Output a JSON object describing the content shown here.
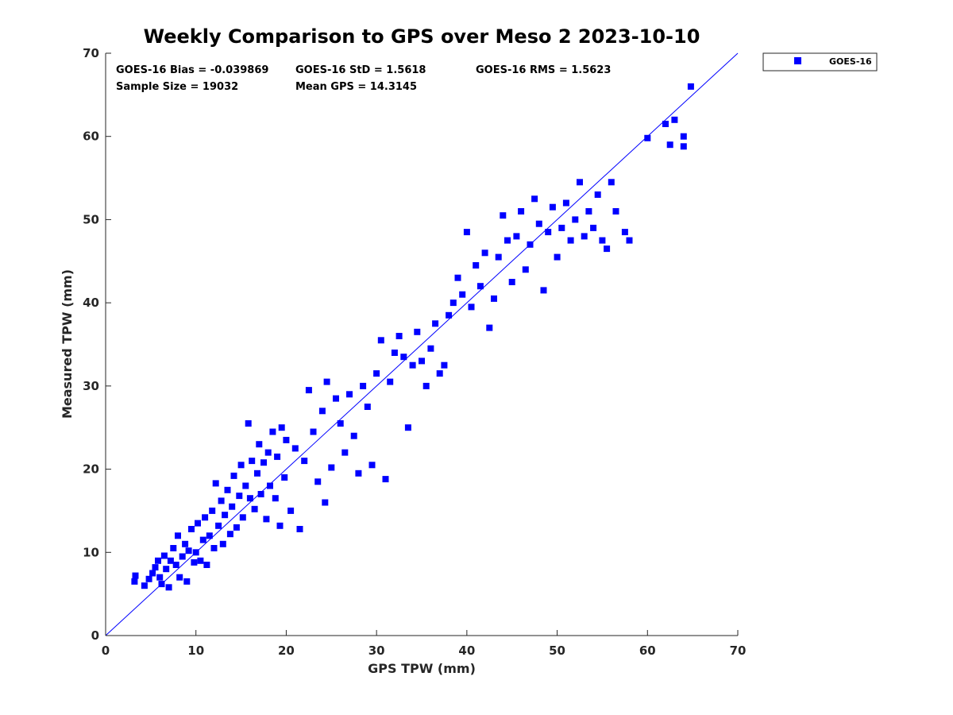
{
  "chart_data": {
    "type": "scatter",
    "title": "Weekly Comparison to GPS over Meso 2 2023-10-10",
    "xlabel": "GPS TPW (mm)",
    "ylabel": "Measured TPW (mm)",
    "xlim": [
      0,
      70
    ],
    "ylim": [
      0,
      70
    ],
    "xticks": [
      "0",
      "10",
      "20",
      "30",
      "40",
      "50",
      "60",
      "70"
    ],
    "yticks": [
      "0",
      "10",
      "20",
      "30",
      "40",
      "50",
      "60",
      "70"
    ],
    "grid": false,
    "legend": {
      "position": "top-right, outside",
      "entries": [
        "GOES-16"
      ]
    },
    "series_color": "#0000ff",
    "reference_line": {
      "type": "one-to-one",
      "from": [
        0,
        0
      ],
      "to": [
        70,
        70
      ],
      "color": "#0000ff"
    },
    "stats": {
      "bias": "GOES-16 Bias = -0.039869",
      "std": "GOES-16 StD = 1.5618",
      "rms": "GOES-16 RMS = 1.5623",
      "sample_size": "Sample Size = 19032",
      "mean_gps": "Mean GPS = 14.3145"
    },
    "series": [
      {
        "name": "GOES-16",
        "note": "representative subset of the 19032 plotted points (estimated from the figure)",
        "points": [
          [
            3.2,
            6.5
          ],
          [
            3.3,
            7.2
          ],
          [
            4.3,
            6.0
          ],
          [
            4.8,
            6.8
          ],
          [
            5.2,
            7.5
          ],
          [
            5.5,
            8.2
          ],
          [
            5.8,
            9.0
          ],
          [
            6.0,
            7.0
          ],
          [
            6.2,
            6.2
          ],
          [
            6.5,
            9.6
          ],
          [
            6.7,
            8.0
          ],
          [
            7.0,
            5.8
          ],
          [
            7.2,
            9.0
          ],
          [
            7.5,
            10.5
          ],
          [
            7.8,
            8.5
          ],
          [
            8.0,
            12.0
          ],
          [
            8.2,
            7.0
          ],
          [
            8.5,
            9.5
          ],
          [
            8.8,
            11.0
          ],
          [
            9.0,
            6.5
          ],
          [
            9.2,
            10.2
          ],
          [
            9.5,
            12.8
          ],
          [
            9.8,
            8.8
          ],
          [
            10.0,
            10.0
          ],
          [
            10.2,
            13.5
          ],
          [
            10.5,
            9.0
          ],
          [
            10.8,
            11.5
          ],
          [
            11.0,
            14.2
          ],
          [
            11.2,
            8.5
          ],
          [
            11.5,
            12.0
          ],
          [
            11.8,
            15.0
          ],
          [
            12.0,
            10.5
          ],
          [
            12.2,
            18.3
          ],
          [
            12.5,
            13.2
          ],
          [
            12.8,
            16.2
          ],
          [
            13.0,
            11.0
          ],
          [
            13.2,
            14.5
          ],
          [
            13.5,
            17.5
          ],
          [
            13.8,
            12.2
          ],
          [
            14.0,
            15.5
          ],
          [
            14.2,
            19.2
          ],
          [
            14.5,
            13.0
          ],
          [
            14.8,
            16.8
          ],
          [
            15.0,
            20.5
          ],
          [
            15.2,
            14.2
          ],
          [
            15.5,
            18.0
          ],
          [
            15.8,
            25.5
          ],
          [
            16.0,
            16.5
          ],
          [
            16.2,
            21.0
          ],
          [
            16.5,
            15.2
          ],
          [
            16.8,
            19.5
          ],
          [
            17.0,
            23.0
          ],
          [
            17.2,
            17.0
          ],
          [
            17.5,
            20.8
          ],
          [
            17.8,
            14.0
          ],
          [
            18.0,
            22.0
          ],
          [
            18.2,
            18.0
          ],
          [
            18.5,
            24.5
          ],
          [
            18.8,
            16.5
          ],
          [
            19.0,
            21.5
          ],
          [
            19.3,
            13.2
          ],
          [
            19.5,
            25.0
          ],
          [
            19.8,
            19.0
          ],
          [
            20.0,
            23.5
          ],
          [
            20.5,
            15.0
          ],
          [
            21.0,
            22.5
          ],
          [
            21.5,
            12.8
          ],
          [
            22.0,
            21.0
          ],
          [
            22.5,
            29.5
          ],
          [
            23.0,
            24.5
          ],
          [
            23.5,
            18.5
          ],
          [
            24.0,
            27.0
          ],
          [
            24.3,
            16.0
          ],
          [
            24.5,
            30.5
          ],
          [
            25.0,
            20.2
          ],
          [
            25.5,
            28.5
          ],
          [
            26.0,
            25.5
          ],
          [
            26.5,
            22.0
          ],
          [
            27.0,
            29.0
          ],
          [
            27.5,
            24.0
          ],
          [
            28.0,
            19.5
          ],
          [
            28.5,
            30.0
          ],
          [
            29.0,
            27.5
          ],
          [
            29.5,
            20.5
          ],
          [
            30.0,
            31.5
          ],
          [
            30.5,
            35.5
          ],
          [
            31.0,
            18.8
          ],
          [
            31.5,
            30.5
          ],
          [
            32.0,
            34.0
          ],
          [
            32.5,
            36.0
          ],
          [
            33.0,
            33.5
          ],
          [
            33.5,
            25.0
          ],
          [
            34.0,
            32.5
          ],
          [
            34.5,
            36.5
          ],
          [
            35.0,
            33.0
          ],
          [
            35.5,
            30.0
          ],
          [
            36.0,
            34.5
          ],
          [
            36.5,
            37.5
          ],
          [
            37.0,
            31.5
          ],
          [
            37.5,
            32.5
          ],
          [
            38.0,
            38.5
          ],
          [
            38.5,
            40.0
          ],
          [
            39.0,
            43.0
          ],
          [
            39.5,
            41.0
          ],
          [
            40.0,
            48.5
          ],
          [
            40.5,
            39.5
          ],
          [
            41.0,
            44.5
          ],
          [
            41.5,
            42.0
          ],
          [
            42.0,
            46.0
          ],
          [
            42.5,
            37.0
          ],
          [
            43.0,
            40.5
          ],
          [
            43.5,
            45.5
          ],
          [
            44.0,
            50.5
          ],
          [
            44.5,
            47.5
          ],
          [
            45.0,
            42.5
          ],
          [
            45.5,
            48.0
          ],
          [
            46.0,
            51.0
          ],
          [
            46.5,
            44.0
          ],
          [
            47.0,
            47.0
          ],
          [
            47.5,
            52.5
          ],
          [
            48.0,
            49.5
          ],
          [
            48.5,
            41.5
          ],
          [
            49.0,
            48.5
          ],
          [
            49.5,
            51.5
          ],
          [
            50.0,
            45.5
          ],
          [
            50.5,
            49.0
          ],
          [
            51.0,
            52.0
          ],
          [
            51.5,
            47.5
          ],
          [
            52.0,
            50.0
          ],
          [
            52.5,
            54.5
          ],
          [
            53.0,
            48.0
          ],
          [
            53.5,
            51.0
          ],
          [
            54.0,
            49.0
          ],
          [
            54.5,
            53.0
          ],
          [
            55.0,
            47.5
          ],
          [
            55.5,
            46.5
          ],
          [
            56.0,
            54.5
          ],
          [
            56.5,
            51.0
          ],
          [
            57.5,
            48.5
          ],
          [
            58.0,
            47.5
          ],
          [
            60.0,
            59.8
          ],
          [
            62.0,
            61.5
          ],
          [
            62.5,
            59.0
          ],
          [
            63.0,
            62.0
          ],
          [
            64.0,
            60.0
          ],
          [
            64.0,
            58.8
          ],
          [
            64.8,
            66.0
          ]
        ]
      }
    ]
  }
}
